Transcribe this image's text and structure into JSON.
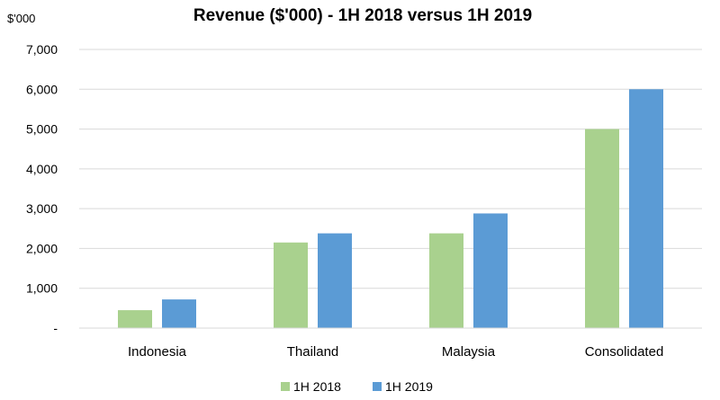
{
  "chart_data": {
    "type": "bar",
    "title": "Revenue ($'000) - 1H 2018 versus 1H 2019",
    "unit_label": "$'000",
    "categories": [
      "Indonesia",
      "Thailand",
      "Malaysia",
      "Consolidated"
    ],
    "series": [
      {
        "name": "1H 2018",
        "color": "#a9d18e",
        "values": [
          450,
          2150,
          2380,
          5000
        ]
      },
      {
        "name": "1H 2019",
        "color": "#5b9bd5",
        "values": [
          720,
          2380,
          2880,
          6000
        ]
      }
    ],
    "ylim": [
      0,
      7000
    ],
    "yticks": [
      0,
      1000,
      2000,
      3000,
      4000,
      5000,
      6000,
      7000
    ],
    "ytick_labels": [
      "-",
      "1,000",
      "2,000",
      "3,000",
      "4,000",
      "5,000",
      "6,000",
      "7,000"
    ],
    "grid": true,
    "legend_position": "bottom",
    "xlabel": "",
    "ylabel": ""
  }
}
